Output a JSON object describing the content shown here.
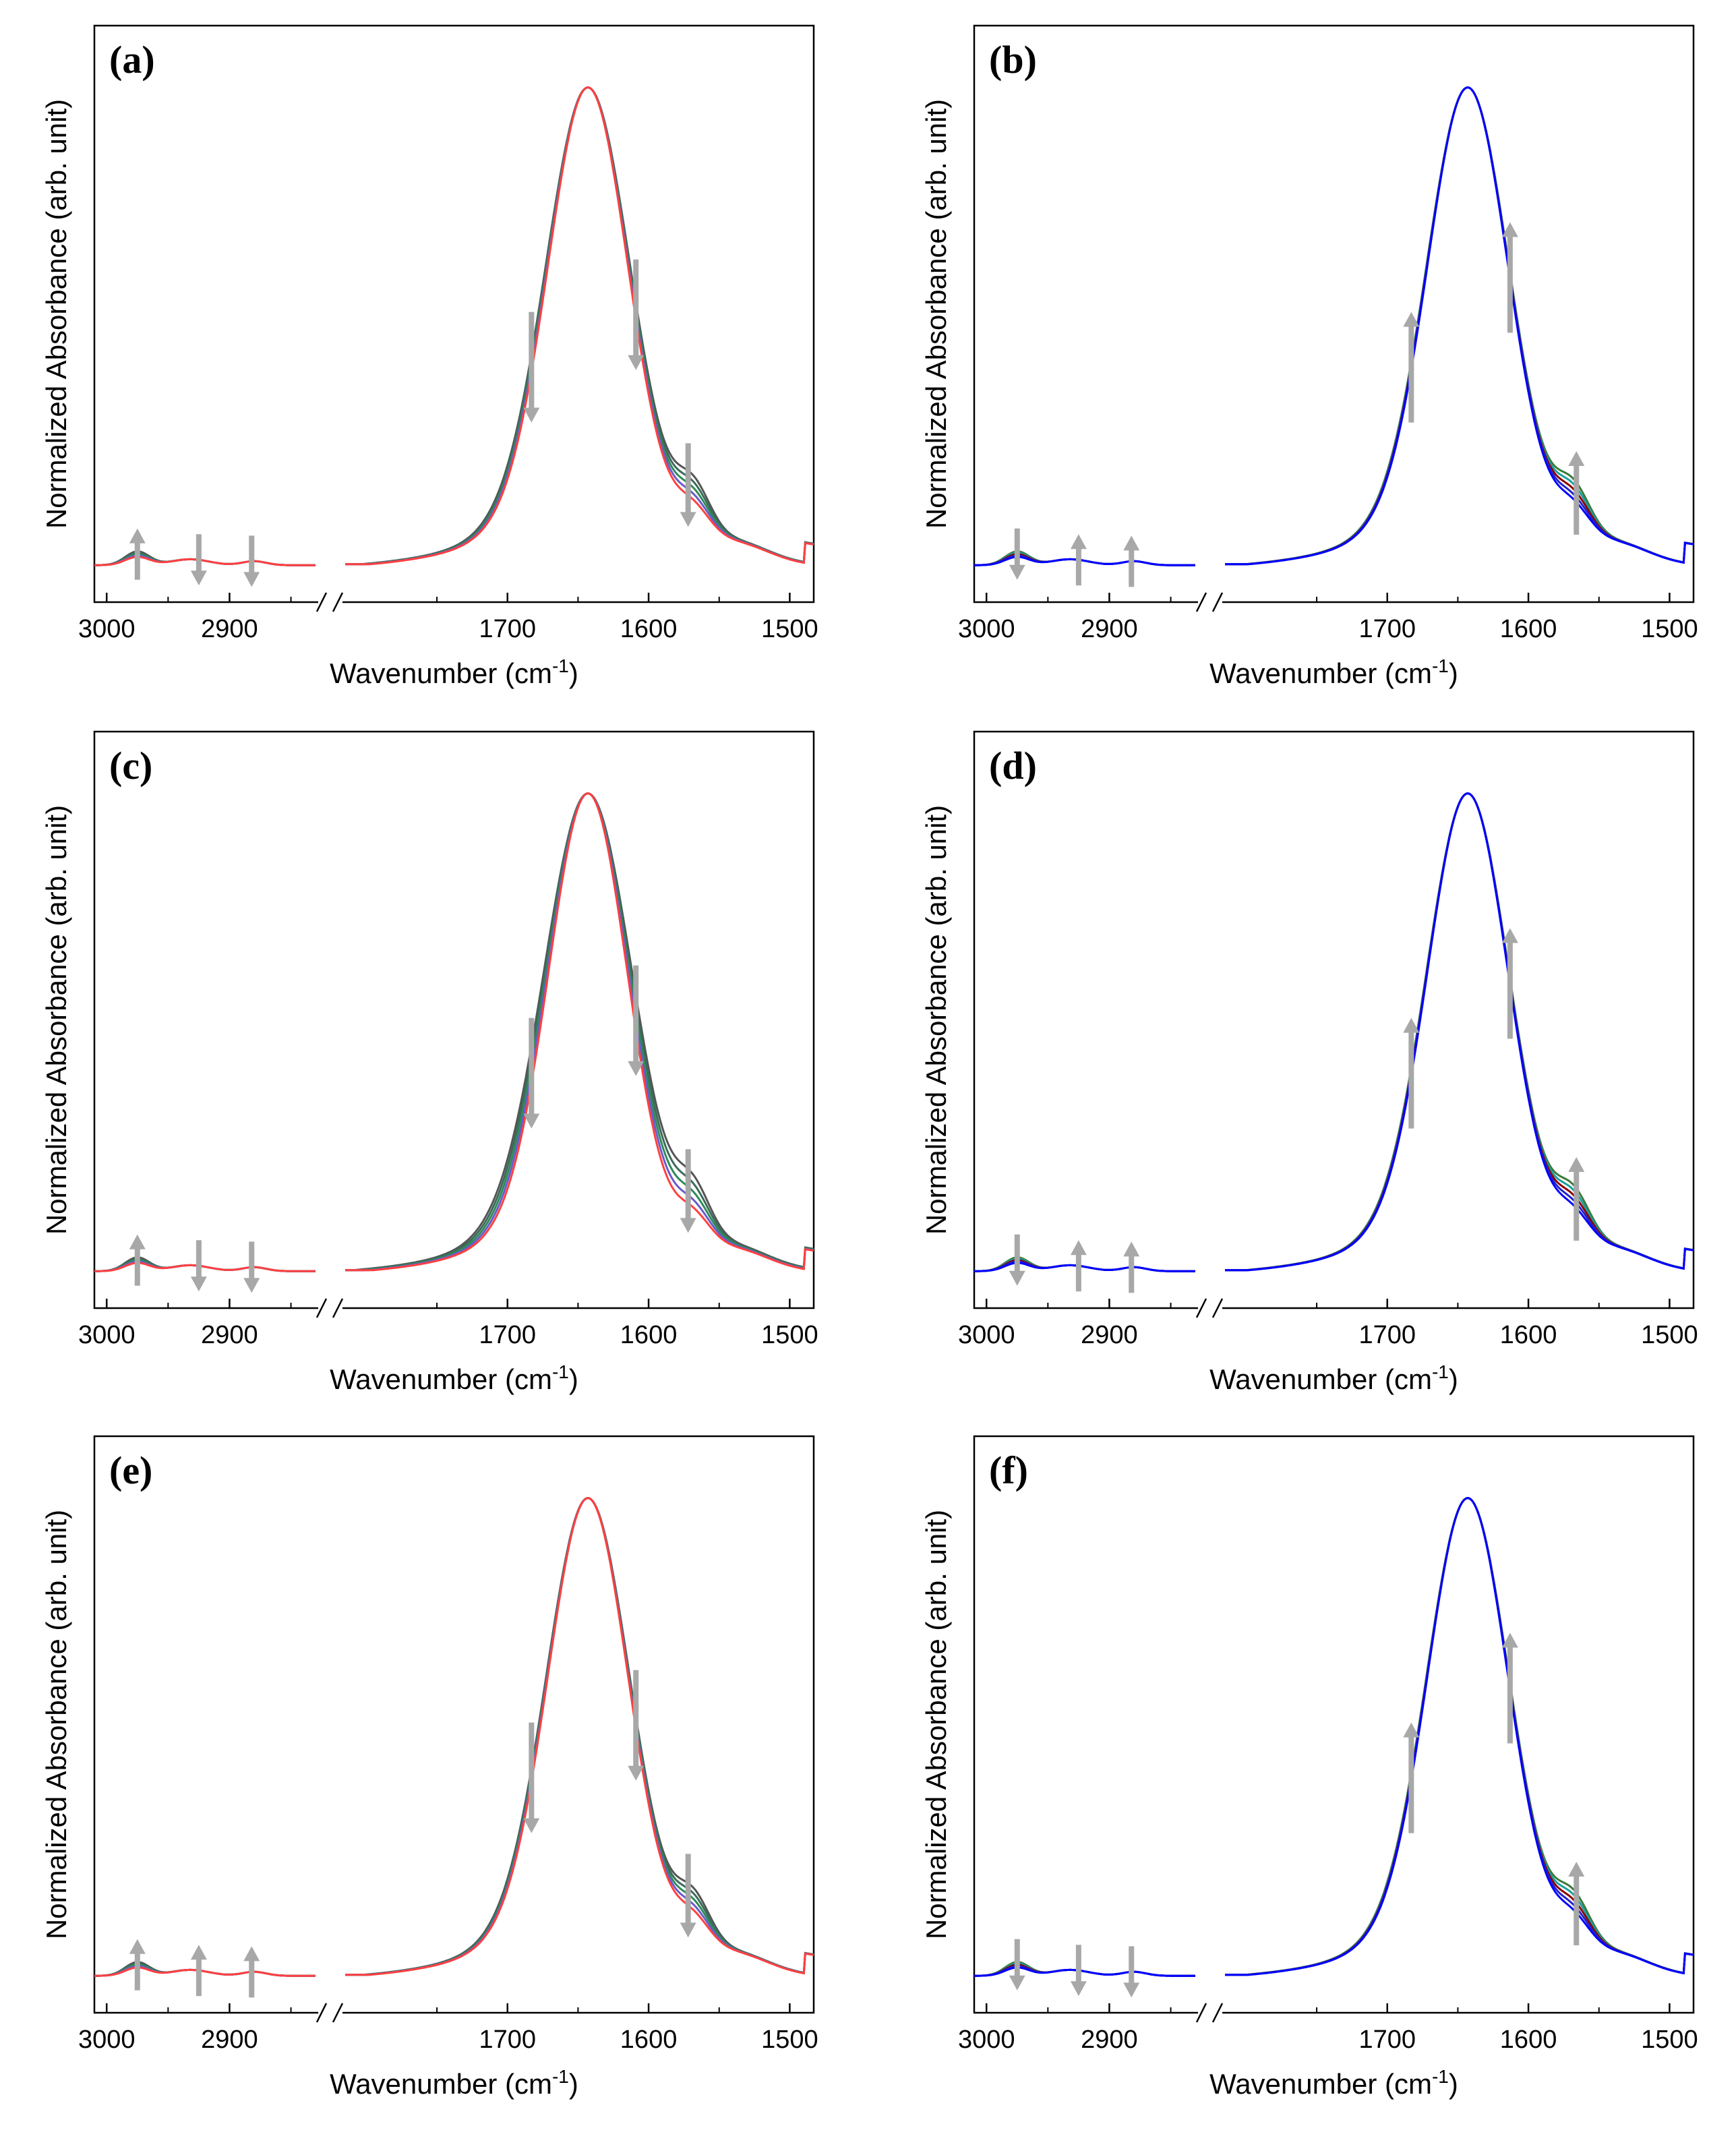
{
  "chart_data": [
    {
      "type": "line",
      "panel": "(a)",
      "xlabel_main": "Wavenumber (cm",
      "xlabel_sup": "-1",
      "xlabel_end": ")",
      "ylabel": "Normalized Absorbance (arb. unit)",
      "x_break": true,
      "xlim_left": [
        3010,
        2830
      ],
      "xlim_right": [
        1815,
        1483
      ],
      "xticks_left": [
        "3000",
        "2900"
      ],
      "xticks_right": [
        "1700",
        "1600",
        "1500"
      ],
      "ylim": [
        0,
        1.05
      ],
      "series_colors": [
        "#555555",
        "#3b6b5a",
        "#2e8b57",
        "#6a5acd",
        "#ff4040"
      ],
      "spread": 0.014,
      "arrows": [
        {
          "x": 2975,
          "direction": "up"
        },
        {
          "x": 2925,
          "direction": "down"
        },
        {
          "x": 2882,
          "direction": "down"
        },
        {
          "x": 1683,
          "direction": "down"
        },
        {
          "x": 1609,
          "direction": "down"
        },
        {
          "x": 1572,
          "direction": "down"
        }
      ]
    },
    {
      "type": "line",
      "panel": "(b)",
      "xlabel_main": "Wavenumber (cm",
      "xlabel_sup": "-1",
      "xlabel_end": ")",
      "ylabel": "Normalized Absorbance (arb. unit)",
      "x_break": true,
      "xlim_left": [
        3010,
        2830
      ],
      "xlim_right": [
        1815,
        1483
      ],
      "xticks_left": [
        "3000",
        "2900"
      ],
      "xticks_right": [
        "1700",
        "1600",
        "1500"
      ],
      "ylim": [
        0,
        1.05
      ],
      "series_colors": [
        "#3a7a3a",
        "#1a9e9e",
        "#8b0000",
        "#2222cc",
        "#0000ff"
      ],
      "spread": 0.006,
      "arrows": [
        {
          "x": 2975,
          "direction": "down"
        },
        {
          "x": 2925,
          "direction": "up"
        },
        {
          "x": 2882,
          "direction": "up"
        },
        {
          "x": 1683,
          "direction": "up"
        },
        {
          "x": 1613,
          "direction": "up"
        },
        {
          "x": 1566,
          "direction": "up"
        }
      ]
    },
    {
      "type": "line",
      "panel": "(c)",
      "xlabel_main": "Wavenumber (cm",
      "xlabel_sup": "-1",
      "xlabel_end": ")",
      "ylabel": "Normalized Absorbance (arb. unit)",
      "x_break": true,
      "xlim_left": [
        3010,
        2830
      ],
      "xlim_right": [
        1815,
        1483
      ],
      "xticks_left": [
        "3000",
        "2900"
      ],
      "xticks_right": [
        "1700",
        "1600",
        "1500"
      ],
      "ylim": [
        0,
        1.05
      ],
      "series_colors": [
        "#555555",
        "#3b6b5a",
        "#2e8b57",
        "#6a5acd",
        "#ff4040"
      ],
      "spread": 0.03,
      "arrows": [
        {
          "x": 2975,
          "direction": "up"
        },
        {
          "x": 2925,
          "direction": "down"
        },
        {
          "x": 2882,
          "direction": "down"
        },
        {
          "x": 1683,
          "direction": "down"
        },
        {
          "x": 1609,
          "direction": "down"
        },
        {
          "x": 1572,
          "direction": "down"
        }
      ]
    },
    {
      "type": "line",
      "panel": "(d)",
      "xlabel_main": "Wavenumber (cm",
      "xlabel_sup": "-1",
      "xlabel_end": ")",
      "ylabel": "Normalized Absorbance (arb. unit)",
      "x_break": true,
      "xlim_left": [
        3010,
        2830
      ],
      "xlim_right": [
        1815,
        1483
      ],
      "xticks_left": [
        "3000",
        "2900"
      ],
      "xticks_right": [
        "1700",
        "1600",
        "1500"
      ],
      "ylim": [
        0,
        1.05
      ],
      "series_colors": [
        "#3a7a3a",
        "#1a9e9e",
        "#8b0000",
        "#2222cc",
        "#0000ff"
      ],
      "spread": 0.006,
      "arrows": [
        {
          "x": 2975,
          "direction": "down"
        },
        {
          "x": 2925,
          "direction": "up"
        },
        {
          "x": 2882,
          "direction": "up"
        },
        {
          "x": 1683,
          "direction": "up"
        },
        {
          "x": 1613,
          "direction": "up"
        },
        {
          "x": 1566,
          "direction": "up"
        }
      ]
    },
    {
      "type": "line",
      "panel": "(e)",
      "xlabel_main": "Wavenumber (cm",
      "xlabel_sup": "-1",
      "xlabel_end": ")",
      "ylabel": "Normalized Absorbance (arb. unit)",
      "x_break": true,
      "xlim_left": [
        3010,
        2830
      ],
      "xlim_right": [
        1815,
        1483
      ],
      "xticks_left": [
        "3000",
        "2900"
      ],
      "xticks_right": [
        "1700",
        "1600",
        "1500"
      ],
      "ylim": [
        0,
        1.05
      ],
      "series_colors": [
        "#555555",
        "#3b6b5a",
        "#2e8b57",
        "#6a5acd",
        "#ff4040"
      ],
      "spread": 0.01,
      "arrows": [
        {
          "x": 2975,
          "direction": "up"
        },
        {
          "x": 2925,
          "direction": "up"
        },
        {
          "x": 2882,
          "direction": "up"
        },
        {
          "x": 1683,
          "direction": "down"
        },
        {
          "x": 1609,
          "direction": "down"
        },
        {
          "x": 1572,
          "direction": "down"
        }
      ]
    },
    {
      "type": "line",
      "panel": "(f)",
      "xlabel_main": "Wavenumber (cm",
      "xlabel_sup": "-1",
      "xlabel_end": ")",
      "ylabel": "Normalized Absorbance (arb. unit)",
      "x_break": true,
      "xlim_left": [
        3010,
        2830
      ],
      "xlim_right": [
        1815,
        1483
      ],
      "xticks_left": [
        "3000",
        "2900"
      ],
      "xticks_right": [
        "1700",
        "1600",
        "1500"
      ],
      "ylim": [
        0,
        1.05
      ],
      "series_colors": [
        "#3a7a3a",
        "#1a9e9e",
        "#8b0000",
        "#2222cc",
        "#0000ff"
      ],
      "spread": 0.006,
      "arrows": [
        {
          "x": 2975,
          "direction": "down"
        },
        {
          "x": 2925,
          "direction": "down"
        },
        {
          "x": 2882,
          "direction": "down"
        },
        {
          "x": 1683,
          "direction": "up"
        },
        {
          "x": 1613,
          "direction": "up"
        },
        {
          "x": 1566,
          "direction": "up"
        }
      ]
    }
  ]
}
